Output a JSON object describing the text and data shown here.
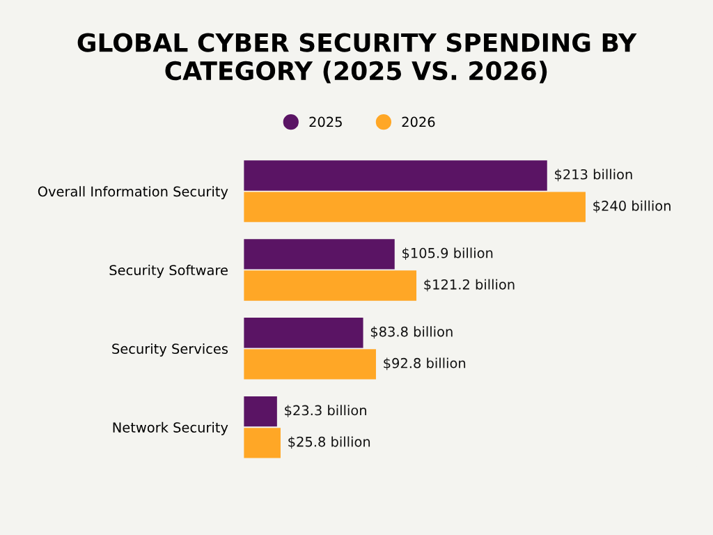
{
  "chart_data": {
    "type": "bar",
    "orientation": "horizontal",
    "title": "GLOBAL CYBER SECURITY SPENDING BY CATEGORY (2025 VS. 2026)",
    "categories": [
      "Overall Information Security",
      "Security Software",
      "Security Services",
      "Network Security"
    ],
    "series": [
      {
        "name": "2025",
        "color": "#5a1464",
        "values": [
          213,
          105.9,
          83.8,
          23.3
        ],
        "value_labels": [
          "$213 billion",
          "$105.9 billion",
          "$83.8 billion",
          "$23.3 billion"
        ]
      },
      {
        "name": "2026",
        "color": "#ffa726",
        "values": [
          240,
          121.2,
          92.8,
          25.8
        ],
        "value_labels": [
          "$240 billion",
          "$121.2 billion",
          "$92.8 billion",
          "$25.8 billion"
        ]
      }
    ],
    "legend": "top",
    "grid": false,
    "tick_labels": "y"
  }
}
